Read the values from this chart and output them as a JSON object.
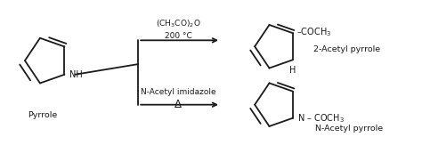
{
  "bg_color": "#ffffff",
  "line_color": "#1a1a1a",
  "fig_width": 4.74,
  "fig_height": 1.63,
  "dpi": 100,
  "pyrrole_label": "Pyrrole",
  "reagent1_line1": "(CH$_3$CO)$_2$O",
  "reagent1_line2": "200 °C",
  "reagent2_line1": "N-Acetyl imidazole",
  "reagent2_line2": "Δ",
  "product1_name": "2-Acetyl pyrrole",
  "product2_name": "N-Acetyl pyrrole",
  "font_size_reagent": 6.5,
  "font_size_label": 7.5,
  "font_size_name": 6.8,
  "font_size_atom": 7.0,
  "lw": 1.3
}
